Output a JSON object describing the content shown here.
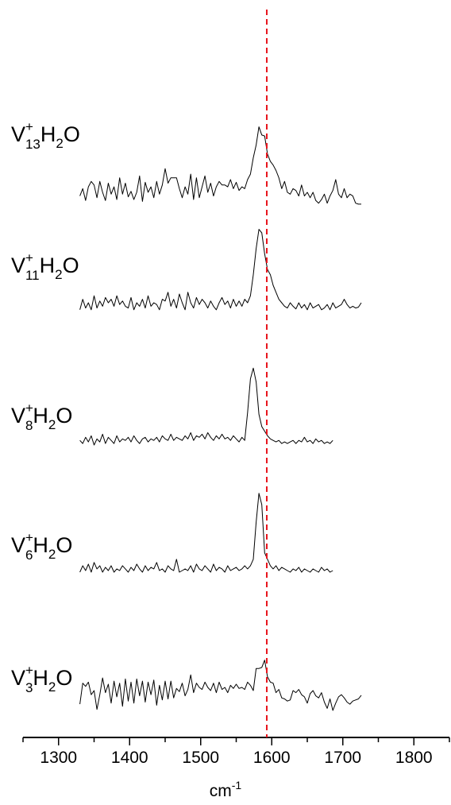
{
  "chart_data": {
    "type": "line",
    "xlabel": "cm",
    "xlabel_superscript": "-1",
    "xlim": [
      1250,
      1850
    ],
    "x_ticks": [
      "1300",
      "1400",
      "1500",
      "1600",
      "1700",
      "1800"
    ],
    "x_tick_values": [
      1300,
      1400,
      1500,
      1600,
      1700,
      1800
    ],
    "reference_line": {
      "x": 1593,
      "color": "#e8141c",
      "style": "dashed"
    },
    "y_axis_shown": false,
    "grid": false,
    "x_start": 1330,
    "x_step": 4,
    "series": [
      {
        "label": {
          "element": "V",
          "sup": "+",
          "sub": "13",
          "mid": "H",
          "sub2": "2",
          "tail": "O"
        },
        "values": [
          0.1,
          0.18,
          0.05,
          0.2,
          0.26,
          0.22,
          0.08,
          0.26,
          0.14,
          0.05,
          0.24,
          0.12,
          0.2,
          0.06,
          0.3,
          0.12,
          0.24,
          0.09,
          0.15,
          0.06,
          0.14,
          0.32,
          0.04,
          0.25,
          0.14,
          0.2,
          0.08,
          0.26,
          0.12,
          0.22,
          0.4,
          0.24,
          0.3,
          0.3,
          0.3,
          0.18,
          0.08,
          0.2,
          0.12,
          0.34,
          0.06,
          0.3,
          0.08,
          0.2,
          0.32,
          0.14,
          0.24,
          0.1,
          0.2,
          0.26,
          0.22,
          0.22,
          0.2,
          0.28,
          0.18,
          0.25,
          0.16,
          0.2,
          0.18,
          0.28,
          0.34,
          0.52,
          0.66,
          0.86,
          0.77,
          0.76,
          0.56,
          0.48,
          0.44,
          0.38,
          0.3,
          0.18,
          0.26,
          0.14,
          0.12,
          0.18,
          0.16,
          0.1,
          0.22,
          0.1,
          0.14,
          0.08,
          0.14,
          0.05,
          0.02,
          0.06,
          0.12,
          0.02,
          0.1,
          0.16,
          0.28,
          0.12,
          0.08,
          0.18,
          0.08,
          0.12,
          0.1,
          0.02,
          0.01,
          0.01
        ],
        "visual_scale": 2.6
      },
      {
        "label": {
          "element": "V",
          "sup": "+",
          "sub": "11",
          "mid": "H",
          "sub2": "2",
          "tail": "O"
        },
        "values": [
          0.02,
          0.14,
          0.04,
          0.1,
          0.02,
          0.18,
          0.04,
          0.12,
          0.06,
          0.16,
          0.1,
          0.14,
          0.06,
          0.18,
          0.08,
          0.12,
          0.06,
          0.04,
          0.16,
          0.02,
          0.1,
          0.06,
          0.14,
          0.04,
          0.18,
          0.06,
          0.1,
          0.08,
          0.02,
          0.14,
          0.12,
          0.22,
          0.06,
          0.14,
          0.04,
          0.2,
          0.1,
          0.02,
          0.22,
          0.1,
          0.04,
          0.16,
          0.08,
          0.14,
          0.1,
          0.04,
          0.12,
          0.06,
          0.02,
          0.1,
          0.16,
          0.08,
          0.12,
          0.04,
          0.14,
          0.06,
          0.12,
          0.06,
          0.14,
          0.1,
          0.18,
          0.42,
          0.72,
          0.94,
          0.9,
          0.66,
          0.48,
          0.42,
          0.3,
          0.22,
          0.14,
          0.1,
          0.06,
          0.04,
          0.1,
          0.06,
          0.03,
          0.1,
          0.04,
          0.08,
          0.02,
          0.1,
          0.04,
          0.06,
          0.08,
          0.02,
          0.04,
          0.08,
          0.02,
          0.1,
          0.04,
          0.06,
          0.08,
          0.14,
          0.08,
          0.04,
          0.06,
          0.04,
          0.05,
          0.1
        ],
        "visual_scale": 2.5
      },
      {
        "label": {
          "element": "V",
          "sup": "+",
          "sub": "8",
          "mid": "H",
          "sub2": "2",
          "tail": "O"
        },
        "values": [
          0.06,
          0.02,
          0.1,
          0.04,
          0.12,
          0.0,
          0.08,
          0.04,
          0.14,
          0.02,
          0.1,
          0.06,
          0.02,
          0.12,
          0.04,
          0.08,
          0.06,
          0.1,
          0.04,
          0.12,
          0.06,
          0.02,
          0.08,
          0.1,
          0.04,
          0.08,
          0.06,
          0.1,
          0.04,
          0.12,
          0.08,
          0.06,
          0.14,
          0.06,
          0.1,
          0.08,
          0.06,
          0.12,
          0.08,
          0.16,
          0.06,
          0.12,
          0.1,
          0.14,
          0.08,
          0.16,
          0.1,
          0.06,
          0.12,
          0.08,
          0.14,
          0.08,
          0.1,
          0.06,
          0.12,
          0.08,
          0.04,
          0.1,
          0.06,
          0.42,
          0.86,
          1.0,
          0.82,
          0.4,
          0.24,
          0.18,
          0.12,
          0.08,
          0.06,
          0.04,
          0.06,
          0.02,
          0.04,
          0.02,
          0.04,
          0.06,
          0.02,
          0.06,
          0.04,
          0.1,
          0.04,
          0.06,
          0.02,
          0.08,
          0.04,
          0.06,
          0.02,
          0.04,
          0.02,
          0.06
        ],
        "visual_scale": 2.2
      },
      {
        "label": {
          "element": "V",
          "sup": "+",
          "sub": "6",
          "mid": "H",
          "sub2": "2",
          "tail": "O"
        },
        "values": [
          0.02,
          0.1,
          0.04,
          0.12,
          0.02,
          0.14,
          0.06,
          0.1,
          0.02,
          0.08,
          0.04,
          0.1,
          0.02,
          0.06,
          0.04,
          0.1,
          0.06,
          0.02,
          0.08,
          0.04,
          0.12,
          0.06,
          0.02,
          0.1,
          0.04,
          0.08,
          0.06,
          0.14,
          0.04,
          0.06,
          0.02,
          0.1,
          0.06,
          0.04,
          0.18,
          0.02,
          0.04,
          0.06,
          0.04,
          0.1,
          0.02,
          0.12,
          0.06,
          0.04,
          0.1,
          0.06,
          0.02,
          0.12,
          0.04,
          0.08,
          0.06,
          0.02,
          0.1,
          0.04,
          0.06,
          0.08,
          0.04,
          0.06,
          0.1,
          0.06,
          0.1,
          0.18,
          0.64,
          1.0,
          0.86,
          0.26,
          0.18,
          0.1,
          0.06,
          0.1,
          0.04,
          0.08,
          0.06,
          0.04,
          0.02,
          0.06,
          0.04,
          0.08,
          0.02,
          0.06,
          0.04,
          0.02,
          0.06,
          0.04,
          0.02,
          0.08,
          0.04,
          0.06,
          0.02,
          0.04
        ],
        "visual_scale": 2.3
      },
      {
        "label": {
          "element": "V",
          "sup": "+",
          "sub": "3",
          "mid": "H",
          "sub2": "2",
          "tail": "O"
        },
        "values": [
          0.18,
          0.58,
          0.52,
          0.6,
          0.36,
          0.44,
          0.08,
          0.36,
          0.68,
          0.4,
          0.56,
          0.2,
          0.62,
          0.32,
          0.58,
          0.14,
          0.66,
          0.24,
          0.6,
          0.2,
          0.66,
          0.34,
          0.62,
          0.22,
          0.6,
          0.36,
          0.64,
          0.16,
          0.54,
          0.26,
          0.62,
          0.28,
          0.62,
          0.3,
          0.48,
          0.42,
          0.58,
          0.34,
          0.46,
          0.74,
          0.4,
          0.58,
          0.5,
          0.46,
          0.6,
          0.5,
          0.44,
          0.58,
          0.4,
          0.6,
          0.46,
          0.5,
          0.4,
          0.54,
          0.48,
          0.56,
          0.48,
          0.5,
          0.46,
          0.6,
          0.54,
          0.44,
          0.86,
          0.86,
          0.88,
          1.02,
          0.7,
          0.6,
          0.58,
          0.4,
          0.46,
          0.3,
          0.28,
          0.24,
          0.26,
          0.44,
          0.4,
          0.46,
          0.36,
          0.32,
          0.2,
          0.38,
          0.44,
          0.34,
          0.3,
          0.4,
          0.22,
          0.1,
          0.28,
          0.06,
          0.2,
          0.32,
          0.36,
          0.3,
          0.22,
          0.18,
          0.24,
          0.26,
          0.28,
          0.35
        ],
        "visual_scale": 1.5
      }
    ]
  }
}
